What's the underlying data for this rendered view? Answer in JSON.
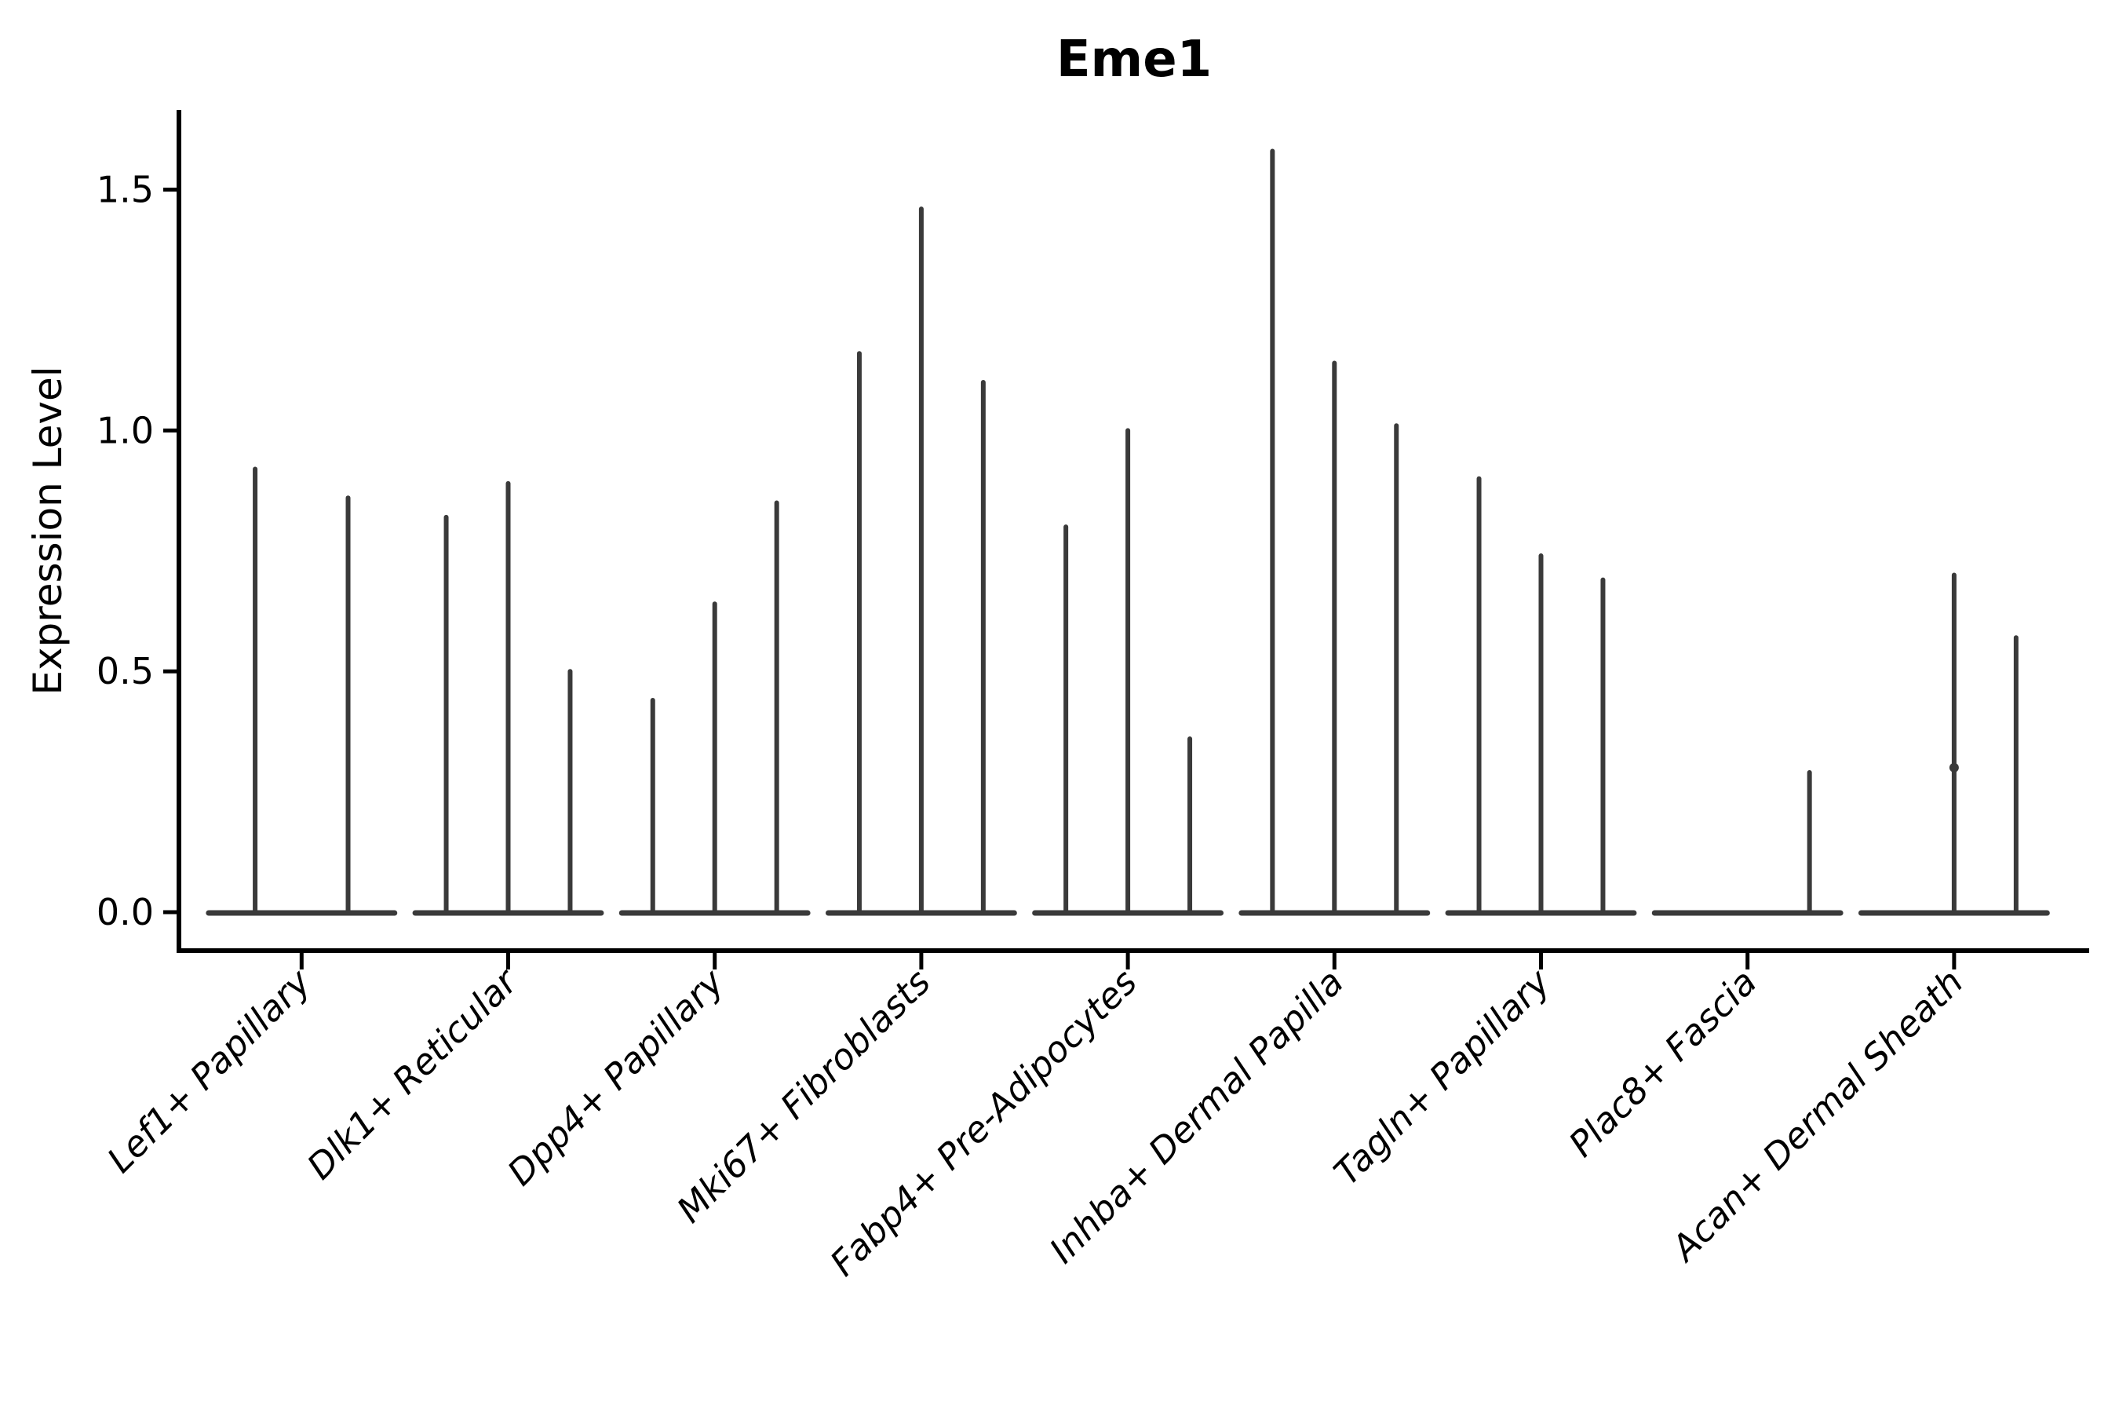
{
  "figure": {
    "title": "Eme1",
    "ylabel": "Expression Level"
  },
  "colors": {
    "violin": "#3a3a3a",
    "axis": "#000000",
    "background": "#ffffff"
  },
  "chart_data": {
    "type": "violin",
    "title": "Eme1",
    "xlabel": "",
    "ylabel": "Expression Level",
    "ytick_labels": [
      "0.0",
      "0.5",
      "1.0",
      "1.5"
    ],
    "ytick_values": [
      0.0,
      0.5,
      1.0,
      1.5
    ],
    "ylim": [
      -0.08,
      1.67
    ],
    "x_rotation": 45,
    "grid": "off",
    "legend": "none",
    "categories": [
      "Lef1+ Papillary",
      "Dlk1+ Reticular",
      "Dpp4+ Papillary",
      "Mki67+ Fibroblasts",
      "Fabp4+ Pre-Adipocytes",
      "Inhba+ Dermal Papilla",
      "Tagln+ Papillary",
      "Plac8+ Fascia",
      "Acan+ Dermal Sheath"
    ],
    "violins": [
      {
        "category": "Lef1+ Papillary",
        "n_groups": 2,
        "spike_heights": [
          0.92,
          0.86
        ]
      },
      {
        "category": "Dlk1+ Reticular",
        "n_groups": 3,
        "spike_heights": [
          0.82,
          0.89,
          0.5
        ]
      },
      {
        "category": "Dpp4+ Papillary",
        "n_groups": 3,
        "spike_heights": [
          0.44,
          0.64,
          0.85
        ]
      },
      {
        "category": "Mki67+ Fibroblasts",
        "n_groups": 3,
        "spike_heights": [
          1.16,
          1.46,
          1.1
        ]
      },
      {
        "category": "Fabp4+ Pre-Adipocytes",
        "n_groups": 3,
        "spike_heights": [
          0.8,
          1.0,
          0.36
        ]
      },
      {
        "category": "Inhba+ Dermal Papilla",
        "n_groups": 3,
        "spike_heights": [
          1.58,
          1.14,
          1.01
        ]
      },
      {
        "category": "Tagln+ Papillary",
        "n_groups": 3,
        "spike_heights": [
          0.9,
          0.74,
          0.69
        ]
      },
      {
        "category": "Plac8+ Fascia",
        "n_groups": 3,
        "spike_heights": [
          null,
          null,
          0.29
        ]
      },
      {
        "category": "Acan+ Dermal Sheath",
        "n_groups": 3,
        "spike_heights": [
          null,
          0.7,
          0.57
        ],
        "knots": [
          null,
          0.3,
          null
        ]
      }
    ]
  }
}
